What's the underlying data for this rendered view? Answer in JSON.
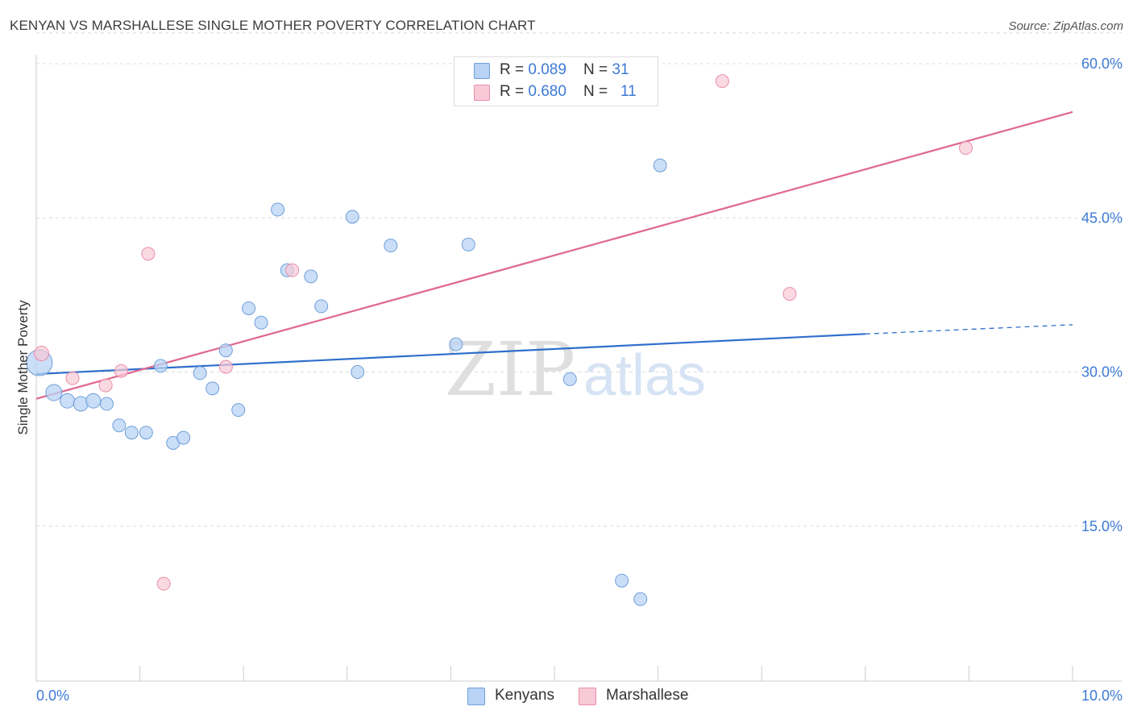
{
  "header": {
    "title": "KENYAN VS MARSHALLESE SINGLE MOTHER POVERTY CORRELATION CHART",
    "source": "Source: ZipAtlas.com"
  },
  "watermark": {
    "zip": "ZIP",
    "atlas": "atlas"
  },
  "legend": {
    "kenyans": {
      "r_label": "R = ",
      "r_value": "0.089",
      "n_label": "N = ",
      "n_value": "31"
    },
    "marshallese": {
      "r_label": "R = ",
      "r_value": "0.680",
      "n_label": "N = ",
      "n_value": "11"
    }
  },
  "chart_data": {
    "type": "scatter",
    "title": "KENYAN VS MARSHALLESE SINGLE MOTHER POVERTY CORRELATION CHART",
    "xlabel": "",
    "ylabel": "Single Mother Poverty",
    "xlim": [
      0,
      10
    ],
    "ylim": [
      0,
      63
    ],
    "x_tick_labels": [
      "0.0%",
      "10.0%"
    ],
    "y_ticks": [
      15,
      30,
      45,
      60
    ],
    "y_tick_labels": [
      "15.0%",
      "30.0%",
      "45.0%",
      "60.0%"
    ],
    "grid": true,
    "legend_position": "top-center",
    "colors": {
      "kenyans_fill": "#b8d3f5",
      "kenyans_stroke": "#6f9fd8",
      "kenyans_line": "#2f6fcc",
      "marshallese_fill": "#f8c9d6",
      "marshallese_stroke": "#e88ea8",
      "marshallese_line": "#e0688f",
      "tick_label": "#3d7ad6"
    },
    "series": [
      {
        "name": "Kenyans",
        "points": [
          {
            "x": 0.03,
            "y": 30.9,
            "size": 16
          },
          {
            "x": 0.17,
            "y": 28.0,
            "size": 10
          },
          {
            "x": 0.3,
            "y": 27.2,
            "size": 9
          },
          {
            "x": 0.43,
            "y": 26.9,
            "size": 9
          },
          {
            "x": 0.55,
            "y": 27.2,
            "size": 9
          },
          {
            "x": 0.68,
            "y": 26.9,
            "size": 8
          },
          {
            "x": 0.8,
            "y": 24.8,
            "size": 8
          },
          {
            "x": 0.92,
            "y": 24.1,
            "size": 8
          },
          {
            "x": 1.06,
            "y": 24.1,
            "size": 8
          },
          {
            "x": 1.2,
            "y": 30.6,
            "size": 8
          },
          {
            "x": 1.32,
            "y": 23.1,
            "size": 8
          },
          {
            "x": 1.42,
            "y": 23.6,
            "size": 8
          },
          {
            "x": 1.58,
            "y": 29.9,
            "size": 8
          },
          {
            "x": 1.7,
            "y": 28.4,
            "size": 8
          },
          {
            "x": 1.83,
            "y": 32.1,
            "size": 8
          },
          {
            "x": 1.95,
            "y": 26.3,
            "size": 8
          },
          {
            "x": 2.05,
            "y": 36.2,
            "size": 8
          },
          {
            "x": 2.17,
            "y": 34.8,
            "size": 8
          },
          {
            "x": 2.33,
            "y": 45.8,
            "size": 8
          },
          {
            "x": 2.42,
            "y": 39.9,
            "size": 8
          },
          {
            "x": 2.65,
            "y": 39.3,
            "size": 8
          },
          {
            "x": 2.75,
            "y": 36.4,
            "size": 8
          },
          {
            "x": 3.05,
            "y": 45.1,
            "size": 8
          },
          {
            "x": 3.1,
            "y": 30.0,
            "size": 8
          },
          {
            "x": 3.42,
            "y": 42.3,
            "size": 8
          },
          {
            "x": 4.05,
            "y": 32.7,
            "size": 8
          },
          {
            "x": 4.17,
            "y": 42.4,
            "size": 8
          },
          {
            "x": 5.15,
            "y": 29.3,
            "size": 8
          },
          {
            "x": 5.65,
            "y": 9.7,
            "size": 8
          },
          {
            "x": 5.83,
            "y": 7.9,
            "size": 8
          },
          {
            "x": 6.02,
            "y": 50.1,
            "size": 8
          }
        ],
        "trendline": {
          "x0": 0,
          "y0": 29.8,
          "x1": 8.0,
          "y1": 33.7,
          "dash_to_x": 10,
          "dash_to_y": 34.6
        }
      },
      {
        "name": "Marshallese",
        "points": [
          {
            "x": 0.05,
            "y": 31.8,
            "size": 9
          },
          {
            "x": 0.35,
            "y": 29.4,
            "size": 8
          },
          {
            "x": 0.67,
            "y": 28.7,
            "size": 8
          },
          {
            "x": 0.82,
            "y": 30.1,
            "size": 8
          },
          {
            "x": 1.08,
            "y": 41.5,
            "size": 8
          },
          {
            "x": 1.23,
            "y": 9.4,
            "size": 8
          },
          {
            "x": 1.83,
            "y": 30.5,
            "size": 8
          },
          {
            "x": 2.47,
            "y": 39.9,
            "size": 8
          },
          {
            "x": 6.62,
            "y": 58.3,
            "size": 8
          },
          {
            "x": 7.27,
            "y": 37.6,
            "size": 8
          },
          {
            "x": 8.97,
            "y": 51.8,
            "size": 8
          }
        ],
        "trendline": {
          "x0": 0,
          "y0": 27.4,
          "x1": 10,
          "y1": 55.3
        }
      }
    ]
  }
}
